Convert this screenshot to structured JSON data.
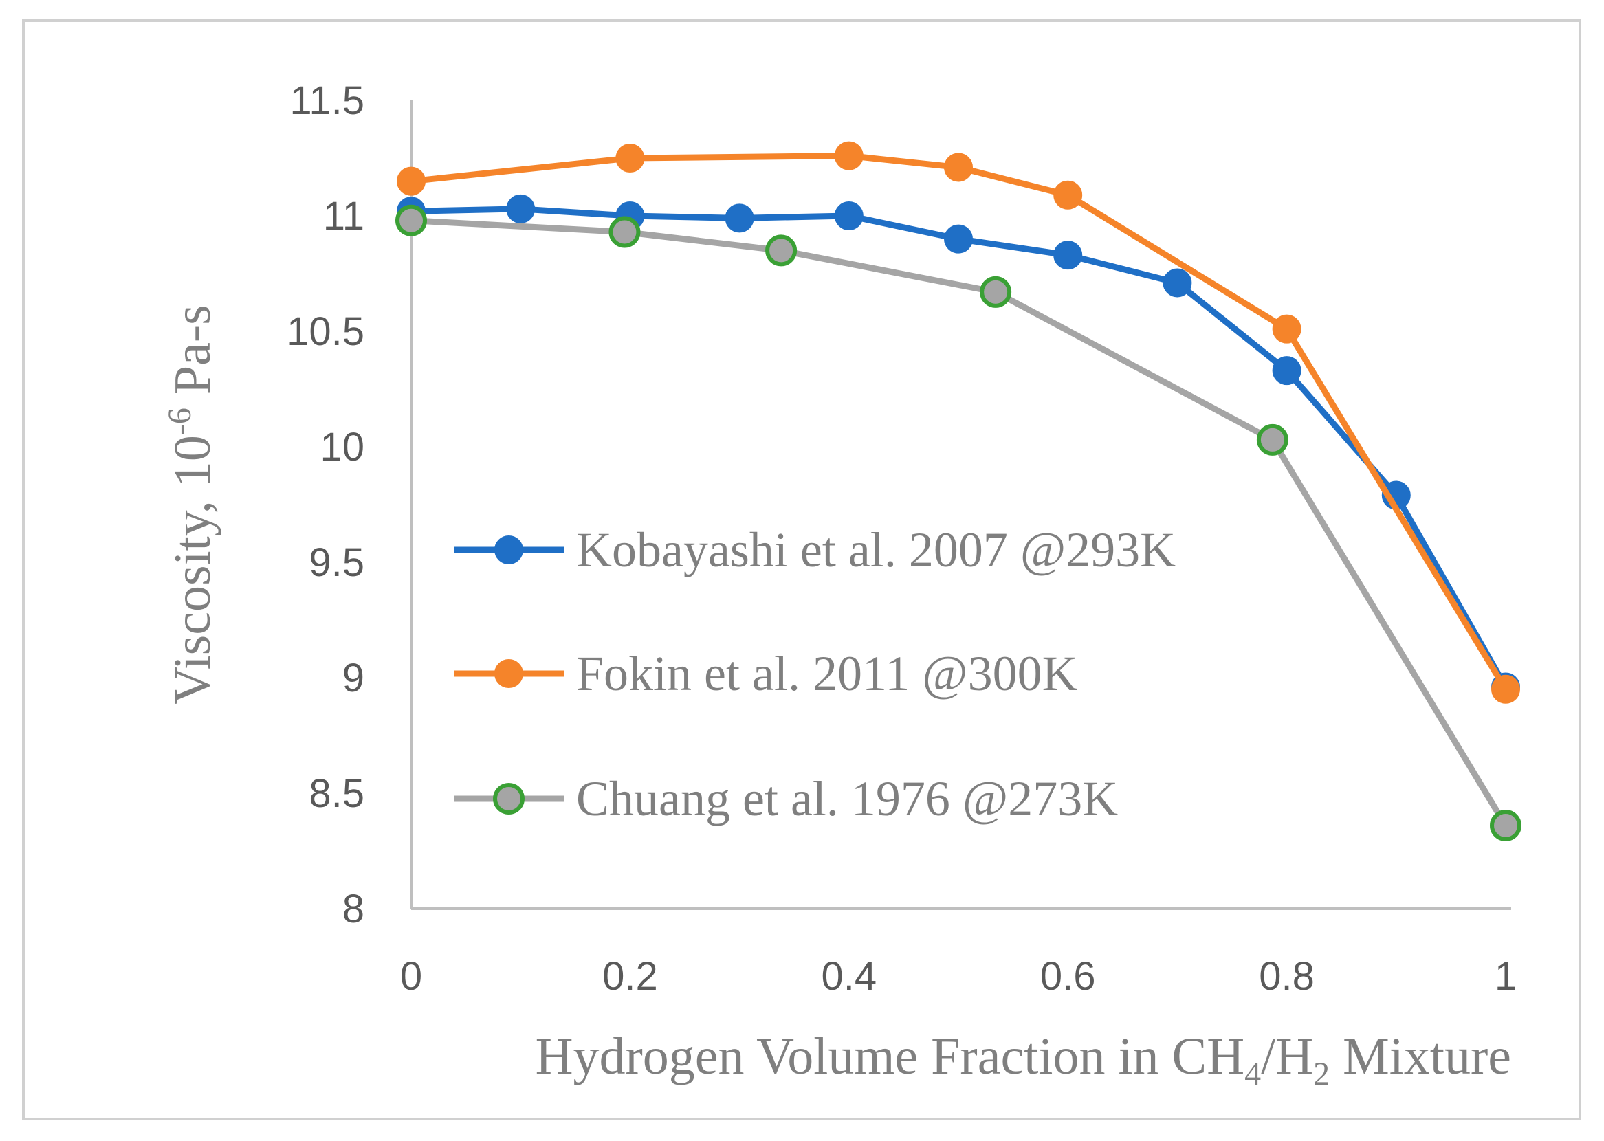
{
  "chart_data": {
    "type": "line",
    "title": "",
    "xlabel": {
      "pre": "Hydrogen Volume Fraction in CH",
      "sub1": "4",
      "mid": "/H",
      "sub2": "2",
      "post": " Mixture"
    },
    "ylabel": {
      "pre": "Viscosity, 10",
      "sup": "-6",
      "post": " Pa-s"
    },
    "xlim": [
      0,
      1
    ],
    "ylim": [
      8,
      11.5
    ],
    "x_ticks": [
      "0",
      "0.2",
      "0.4",
      "0.6",
      "0.8",
      "1"
    ],
    "y_ticks": [
      "8",
      "8.5",
      "9",
      "9.5",
      "10",
      "10.5",
      "11",
      "11.5"
    ],
    "grid": false,
    "legend_position": "center-left",
    "series": [
      {
        "name": "Kobayashi et al. 2007 @293K",
        "color": "#1f6fc6",
        "marker_fill": "#1f6fc6",
        "marker_edge": "#1f6fc6",
        "x": [
          0,
          0.1,
          0.2,
          0.3,
          0.4,
          0.5,
          0.6,
          0.7,
          0.8,
          0.9,
          1.0
        ],
        "y": [
          11.02,
          11.03,
          11.0,
          10.99,
          11.0,
          10.9,
          10.83,
          10.71,
          10.33,
          9.79,
          8.96
        ]
      },
      {
        "name": "Fokin et al. 2011 @300K",
        "color": "#f5842a",
        "marker_fill": "#f5842a",
        "marker_edge": "#f5842a",
        "x": [
          0,
          0.2,
          0.4,
          0.5,
          0.6,
          0.8,
          1.0
        ],
        "y": [
          11.15,
          11.25,
          11.26,
          11.21,
          11.09,
          10.51,
          8.95
        ]
      },
      {
        "name": "Chuang et al. 1976 @273K",
        "color": "#a5a5a5",
        "marker_fill": "#a5a5a5",
        "marker_edge": "#3aa035",
        "x": [
          0,
          0.195,
          0.338,
          0.534,
          0.787,
          1.0
        ],
        "y": [
          10.98,
          10.93,
          10.85,
          10.67,
          10.03,
          8.36
        ]
      }
    ]
  }
}
